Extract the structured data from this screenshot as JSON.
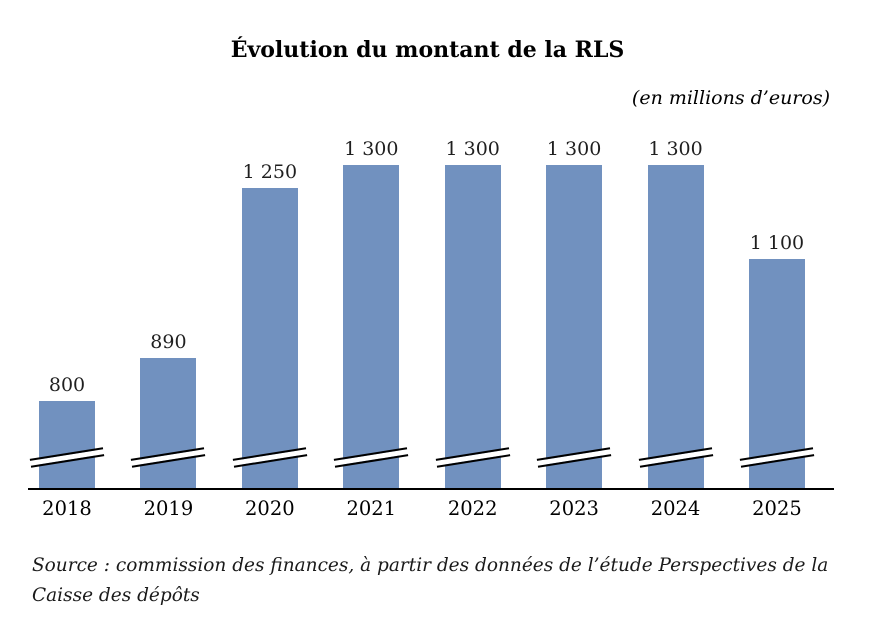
{
  "chart_data": {
    "type": "bar",
    "title": "Évolution du montant de la RLS",
    "subtitle": "(en millions d’euros)",
    "categories": [
      "2018",
      "2019",
      "2020",
      "2021",
      "2022",
      "2023",
      "2024",
      "2025"
    ],
    "values": [
      800,
      890,
      1250,
      1300,
      1300,
      1300,
      1300,
      1100
    ],
    "value_labels": [
      "800",
      "890",
      "1 250",
      "1 300",
      "1 300",
      "1 300",
      "1 300",
      "1 100"
    ],
    "unit": "millions d’euros",
    "xlabel": "",
    "ylabel": "",
    "bar_color": "#7191bf",
    "axis_color": "#000000",
    "axis_break": true,
    "grid": false,
    "legend": false,
    "source": "Source : commission des finances, à partir des données de l’étude Perspectives de la Caisse des dépôts"
  }
}
